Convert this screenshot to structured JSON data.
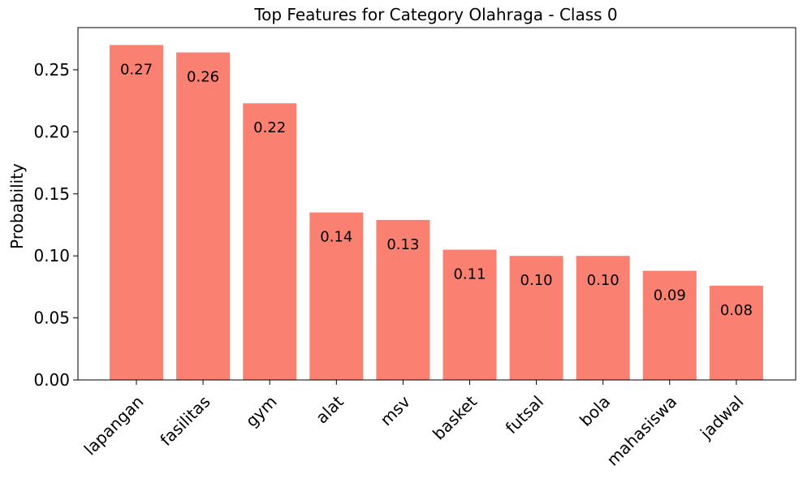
{
  "chart_data": {
    "type": "bar",
    "title": "Top Features for Category Olahraga - Class 0",
    "xlabel": "",
    "ylabel": "Probability",
    "categories": [
      "lapangan",
      "fasilitas",
      "gym",
      "alat",
      "msv",
      "basket",
      "futsal",
      "bola",
      "mahasiswa",
      "jadwal"
    ],
    "values": [
      0.27,
      0.264,
      0.223,
      0.135,
      0.129,
      0.105,
      0.1,
      0.1,
      0.088,
      0.076
    ],
    "value_labels": [
      "0.27",
      "0.26",
      "0.22",
      "0.14",
      "0.13",
      "0.11",
      "0.10",
      "0.10",
      "0.09",
      "0.08"
    ],
    "yticks": [
      "0.00",
      "0.05",
      "0.10",
      "0.15",
      "0.20",
      "0.25"
    ],
    "ylim": [
      0,
      0.284
    ],
    "grid": false,
    "bar_color": "#fa8072"
  }
}
